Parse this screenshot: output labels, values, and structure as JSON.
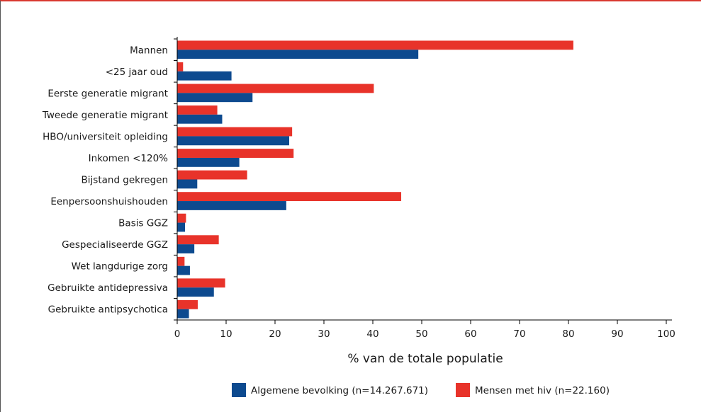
{
  "chart_data": {
    "type": "bar",
    "orientation": "horizontal",
    "categories": [
      "Mannen",
      "<25 jaar oud",
      "Eerste generatie migrant",
      "Tweede generatie migrant",
      "HBO/universiteit opleiding",
      "Inkomen <120%",
      "Bijstand gekregen",
      "Eenpersoonshuishouden",
      "Basis GGZ",
      "Gespecialiseerde GGZ",
      "Wet langdurige zorg",
      "Gebruikte antidepressiva",
      "Gebruikte antipsychotica"
    ],
    "series": [
      {
        "name": "Mensen met hiv (n=22.160)",
        "color": "#e8332a",
        "values": [
          81,
          1.2,
          40.2,
          8.2,
          23.5,
          23.8,
          14.3,
          45.8,
          1.8,
          8.5,
          1.5,
          9.8,
          4.2
        ]
      },
      {
        "name": "Algemene bevolking (n=14.267.671)",
        "color": "#0d4a8f",
        "values": [
          49.3,
          11.1,
          15.4,
          9.2,
          22.9,
          12.7,
          4.1,
          22.3,
          1.6,
          3.5,
          2.6,
          7.5,
          2.4
        ]
      }
    ],
    "xlabel": "% van de totale populatie",
    "ylabel": "",
    "xlim": [
      0,
      100
    ],
    "xticks": [
      "0",
      "10",
      "20",
      "30",
      "40",
      "50",
      "60",
      "70",
      "80",
      "90",
      "100"
    ],
    "legend_order": [
      "Algemene bevolking (n=14.267.671)",
      "Mensen met hiv (n=22.160)"
    ],
    "legend_position": "bottom-center",
    "grid": false
  }
}
